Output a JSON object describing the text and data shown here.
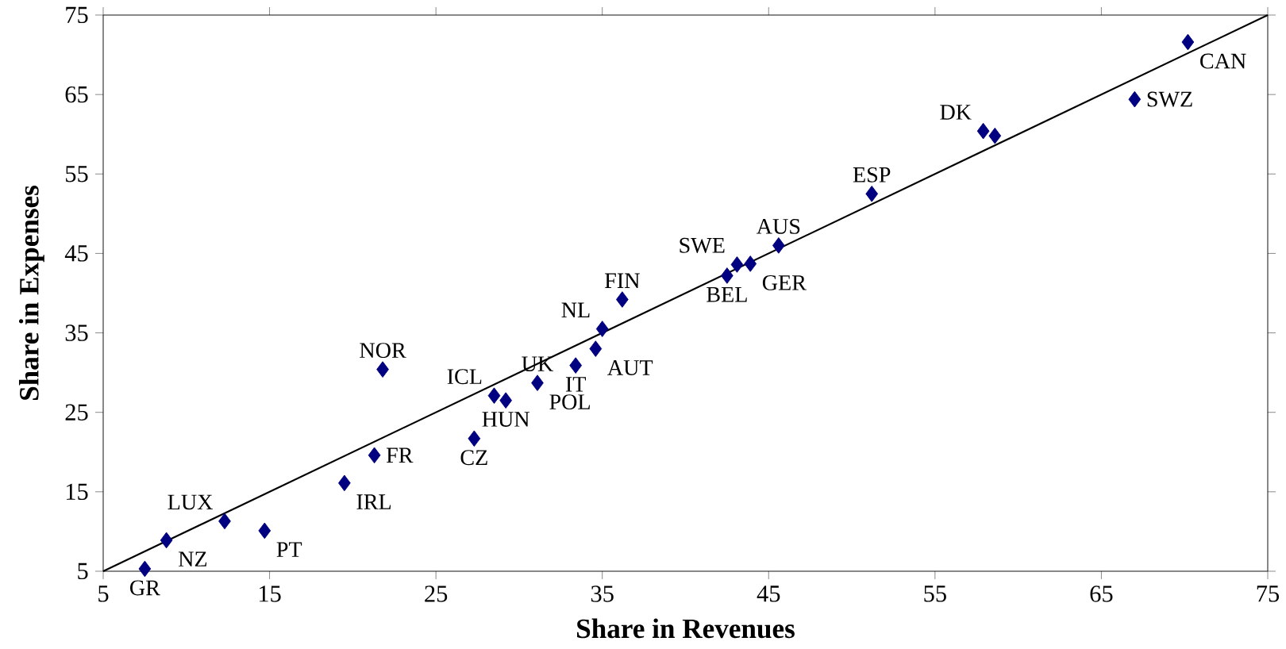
{
  "chart_data": {
    "type": "scatter",
    "xlabel": "Share in Revenues",
    "ylabel": "Share in Expenses",
    "xlim": [
      5,
      75
    ],
    "ylim": [
      5,
      75
    ],
    "xticks": [
      5,
      15,
      25,
      35,
      45,
      55,
      65,
      75
    ],
    "yticks": [
      5,
      15,
      25,
      35,
      45,
      55,
      65,
      75
    ],
    "grid": false,
    "marker": "diamond",
    "series": [
      {
        "color": "#000080",
        "x": [
          70.2,
          67.0,
          57.9,
          58.6,
          51.2,
          45.6,
          43.9,
          43.1,
          42.5,
          36.2,
          35.0,
          34.6,
          33.4,
          31.1,
          28.5,
          29.2,
          27.3,
          21.8,
          21.3,
          19.5,
          14.7,
          12.3,
          8.8,
          7.5
        ],
        "values": [
          71.6,
          64.4,
          60.4,
          59.8,
          52.5,
          46.0,
          43.7,
          43.6,
          42.2,
          39.2,
          35.5,
          33.0,
          30.9,
          28.7,
          27.1,
          26.5,
          21.7,
          30.4,
          19.6,
          16.1,
          10.1,
          11.3,
          8.9,
          5.3
        ]
      },
      {
        "type": "line",
        "color": "#000000",
        "marker": "none",
        "x": [
          5,
          75
        ],
        "values": [
          5,
          75
        ]
      }
    ],
    "annotations": [
      {
        "text": "CAN",
        "x": 70.2,
        "y": 71.6
      },
      {
        "text": "SWZ",
        "x": 67.0,
        "y": 64.4
      },
      {
        "text": "DK",
        "x": 57.9,
        "y": 60.4
      },
      {
        "text": "ESP",
        "x": 51.2,
        "y": 52.5
      },
      {
        "text": "AUS",
        "x": 45.6,
        "y": 46.0
      },
      {
        "text": "GER",
        "x": 43.9,
        "y": 43.7
      },
      {
        "text": "SWE",
        "x": 43.1,
        "y": 43.6
      },
      {
        "text": "BEL",
        "x": 42.5,
        "y": 42.2
      },
      {
        "text": "FIN",
        "x": 36.2,
        "y": 39.2
      },
      {
        "text": "NL",
        "x": 35.0,
        "y": 35.5
      },
      {
        "text": "AUT",
        "x": 34.6,
        "y": 33.0
      },
      {
        "text": "IT",
        "x": 33.4,
        "y": 30.9
      },
      {
        "text": "UK",
        "x": 31.1,
        "y": 28.7
      },
      {
        "text": "POL",
        "x": 31.1,
        "y": 28.7
      },
      {
        "text": "ICL",
        "x": 28.5,
        "y": 27.1
      },
      {
        "text": "HUN",
        "x": 29.2,
        "y": 26.5
      },
      {
        "text": "CZ",
        "x": 27.3,
        "y": 21.7
      },
      {
        "text": "NOR",
        "x": 21.8,
        "y": 30.4
      },
      {
        "text": "FR",
        "x": 21.3,
        "y": 19.6
      },
      {
        "text": "IRL",
        "x": 19.5,
        "y": 16.1
      },
      {
        "text": "PT",
        "x": 14.7,
        "y": 10.1
      },
      {
        "text": "LUX",
        "x": 12.3,
        "y": 11.3
      },
      {
        "text": "NZ",
        "x": 8.8,
        "y": 8.9
      },
      {
        "text": "GR",
        "x": 7.5,
        "y": 5.3
      }
    ]
  }
}
